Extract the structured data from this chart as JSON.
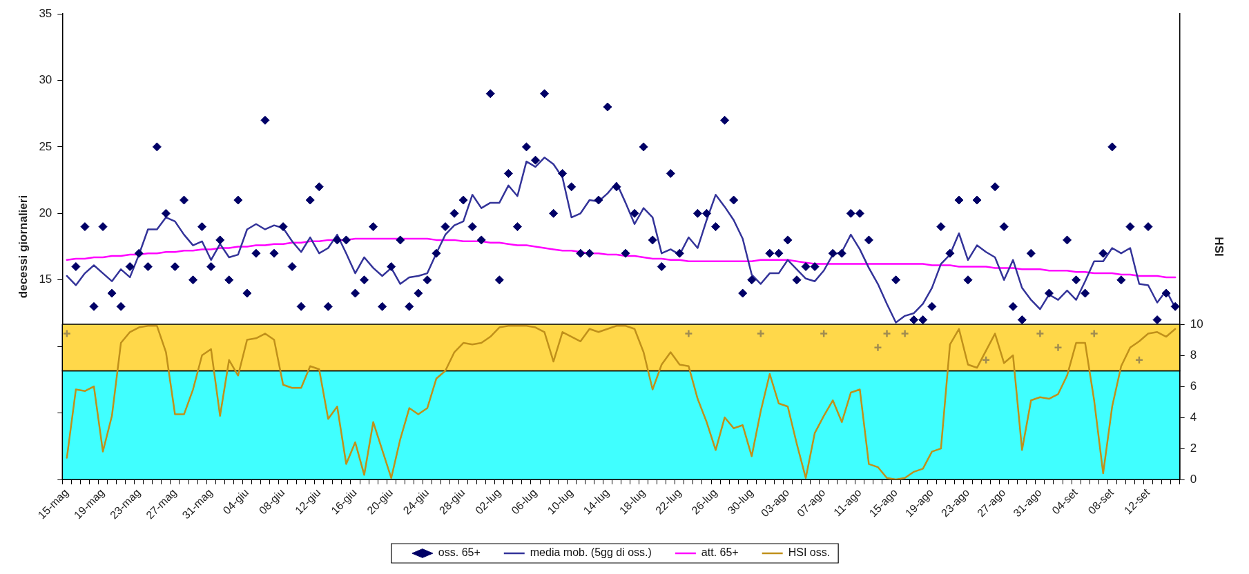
{
  "chart_data": {
    "type": "line",
    "ylabel": "decessi giornalieri",
    "y2label": "HSI",
    "legend": "bottom",
    "categories": [
      "15-mag",
      null,
      null,
      null,
      "19-mag",
      null,
      null,
      null,
      "23-mag",
      null,
      null,
      null,
      "27-mag",
      null,
      null,
      null,
      "31-mag",
      null,
      null,
      null,
      "04-giu",
      null,
      null,
      null,
      "08-giu",
      null,
      null,
      null,
      "12-giu",
      null,
      null,
      null,
      "16-giu",
      null,
      null,
      null,
      "20-giu",
      null,
      null,
      null,
      "24-giu",
      null,
      null,
      null,
      "28-giu",
      null,
      null,
      null,
      "02-lug",
      null,
      null,
      null,
      "06-lug",
      null,
      null,
      null,
      "10-lug",
      null,
      null,
      null,
      "14-lug",
      null,
      null,
      null,
      "18-lug",
      null,
      null,
      null,
      "22-lug",
      null,
      null,
      null,
      "26-lug",
      null,
      null,
      null,
      "30-lug",
      null,
      null,
      null,
      "03-ago",
      null,
      null,
      null,
      "07-ago",
      null,
      null,
      null,
      "11-ago",
      null,
      null,
      null,
      "15-ago",
      null,
      null,
      null,
      "19-ago",
      null,
      null,
      null,
      "23-ago",
      null,
      null,
      null,
      "27-ago",
      null,
      null,
      null,
      "31-ago",
      null,
      null,
      null,
      "04-set",
      null,
      null,
      null,
      "08-set",
      null,
      null,
      null,
      "12-set",
      null,
      null,
      null
    ],
    "ylim": [
      0,
      35
    ],
    "yticks": [
      {
        "value": 0,
        "label": null
      },
      {
        "value": 5,
        "label": null
      },
      {
        "value": 10,
        "label": null
      },
      15,
      20,
      25,
      30,
      35
    ],
    "y2lim": [
      0,
      30
    ],
    "y2ticks": [
      0,
      2,
      4,
      6,
      8,
      10
    ],
    "bands": [
      {
        "axis": "y2",
        "from": 0,
        "to": 7,
        "color": "#40ffff"
      },
      {
        "axis": "y2",
        "from": 7,
        "to": 10,
        "color": "#ffd84a"
      }
    ],
    "series": [
      {
        "name": "oss. 65+",
        "type": "scatter",
        "marker": "diamond",
        "color": "#000066",
        "values": [
          null,
          16,
          19,
          13,
          19,
          14,
          13,
          16,
          17,
          16,
          25,
          20,
          16,
          21,
          15,
          19,
          16,
          18,
          15,
          21,
          14,
          17,
          27,
          17,
          19,
          16,
          13,
          21,
          22,
          13,
          18,
          18,
          14,
          15,
          19,
          13,
          16,
          18,
          13,
          14,
          15,
          17,
          19,
          20,
          21,
          19,
          18,
          29,
          15,
          23,
          19,
          25,
          24,
          29,
          20,
          23,
          22,
          17,
          17,
          21,
          28,
          22,
          17,
          20,
          25,
          18,
          16,
          23,
          17,
          null,
          20,
          20,
          19,
          27,
          21,
          14,
          15,
          null,
          17,
          17,
          18,
          15,
          16,
          16,
          null,
          17,
          17,
          20,
          20,
          18,
          null,
          null,
          15,
          null,
          12,
          12,
          13,
          19,
          17,
          21,
          15,
          21,
          null,
          22,
          19,
          13,
          12,
          17,
          null,
          14,
          null,
          18,
          15,
          14,
          null,
          17,
          25,
          15,
          19,
          null,
          19,
          12,
          14,
          13
        ]
      },
      {
        "name": "media mob. (5gg di oss.)",
        "type": "line",
        "marker": "none",
        "color": "#333399",
        "values": [
          15.3,
          14.6,
          15.5,
          16.1,
          15.5,
          14.9,
          15.8,
          15.2,
          16.9,
          18.8,
          18.8,
          19.7,
          19.4,
          18.4,
          17.6,
          17.9,
          16.5,
          17.7,
          16.7,
          16.9,
          18.8,
          19.2,
          18.8,
          19.1,
          18.9,
          17.9,
          17.1,
          18.2,
          17.0,
          17.4,
          18.4,
          17.0,
          15.5,
          16.7,
          15.9,
          15.3,
          15.9,
          14.7,
          15.2,
          15.3,
          15.5,
          17.0,
          18.4,
          19.1,
          19.4,
          21.4,
          20.4,
          20.8,
          20.8,
          22.1,
          21.3,
          23.9,
          23.5,
          24.2,
          23.7,
          22.7,
          19.7,
          20.0,
          21.0,
          20.9,
          21.5,
          22.3,
          20.8,
          19.2,
          20.4,
          19.7,
          17.0,
          17.3,
          16.9,
          18.2,
          17.4,
          19.5,
          21.4,
          20.5,
          19.5,
          18.1,
          15.4,
          14.7,
          15.5,
          15.5,
          16.5,
          15.8,
          15.1,
          14.9,
          15.7,
          16.9,
          17.1,
          18.4,
          17.3,
          15.9,
          14.7,
          13.2,
          11.8,
          12.3,
          12.5,
          13.2,
          14.4,
          16.2,
          16.9,
          18.5,
          16.5,
          17.6,
          17.1,
          16.7,
          15.0,
          16.5,
          14.4,
          13.5,
          12.8,
          13.9,
          13.5,
          14.2,
          13.5,
          14.9,
          16.4,
          16.4,
          17.4,
          17.0,
          17.4,
          14.7,
          14.6,
          13.3,
          14.2,
          12.9
        ]
      },
      {
        "name": "att. 65+",
        "type": "line",
        "marker": "none",
        "color": "#ff00ff",
        "values": [
          16.5,
          16.6,
          16.6,
          16.7,
          16.7,
          16.8,
          16.8,
          16.9,
          16.9,
          17.0,
          17.0,
          17.1,
          17.1,
          17.2,
          17.2,
          17.3,
          17.3,
          17.4,
          17.4,
          17.5,
          17.5,
          17.6,
          17.6,
          17.7,
          17.7,
          17.8,
          17.8,
          17.9,
          17.9,
          18.0,
          18.0,
          18.0,
          18.1,
          18.1,
          18.1,
          18.1,
          18.1,
          18.1,
          18.1,
          18.1,
          18.1,
          18.0,
          18.0,
          18.0,
          17.9,
          17.9,
          17.9,
          17.8,
          17.8,
          17.7,
          17.6,
          17.6,
          17.5,
          17.4,
          17.3,
          17.2,
          17.2,
          17.1,
          17.0,
          17.0,
          16.9,
          16.9,
          16.8,
          16.8,
          16.7,
          16.6,
          16.6,
          16.5,
          16.5,
          16.4,
          16.4,
          16.4,
          16.4,
          16.4,
          16.4,
          16.4,
          16.4,
          16.5,
          16.5,
          16.5,
          16.5,
          16.4,
          16.3,
          16.2,
          16.2,
          16.2,
          16.2,
          16.2,
          16.2,
          16.2,
          16.2,
          16.2,
          16.2,
          16.2,
          16.2,
          16.2,
          16.1,
          16.1,
          16.1,
          16.0,
          16.0,
          16.0,
          16.0,
          15.9,
          15.9,
          15.9,
          15.8,
          15.8,
          15.8,
          15.7,
          15.7,
          15.7,
          15.6,
          15.6,
          15.5,
          15.5,
          15.5,
          15.4,
          15.4,
          15.3,
          15.3,
          15.3,
          15.2,
          15.2
        ]
      },
      {
        "name": "HSI oss.",
        "type": "line",
        "marker": "none",
        "axis": "y2",
        "color": "#c0901a",
        "values": [
          1.4,
          5.8,
          5.7,
          6.0,
          1.8,
          4.1,
          8.8,
          9.5,
          9.8,
          9.9,
          9.9,
          8.2,
          4.2,
          4.2,
          5.8,
          8.0,
          8.4,
          4.1,
          7.7,
          6.7,
          9.0,
          9.1,
          9.4,
          9.0,
          6.1,
          5.9,
          5.9,
          7.3,
          7.1,
          3.9,
          4.7,
          1.0,
          2.4,
          0.3,
          3.7,
          1.9,
          0.1,
          2.6,
          4.6,
          4.2,
          4.6,
          6.5,
          7.0,
          8.2,
          8.8,
          8.7,
          8.8,
          9.2,
          9.8,
          9.9,
          9.9,
          9.9,
          9.8,
          9.5,
          7.6,
          9.5,
          9.2,
          8.9,
          9.7,
          9.5,
          9.7,
          9.9,
          9.9,
          9.7,
          8.2,
          5.8,
          7.4,
          8.2,
          7.4,
          7.3,
          5.2,
          3.7,
          1.9,
          4.0,
          3.3,
          3.5,
          1.5,
          4.4,
          6.8,
          4.9,
          4.7,
          2.3,
          0.1,
          3.0,
          4.1,
          5.1,
          3.7,
          5.6,
          5.8,
          1.0,
          0.8,
          0.1,
          0,
          0.1,
          0.5,
          0.7,
          1.8,
          2.0,
          8.7,
          9.7,
          7.4,
          7.2,
          8.3,
          9.4,
          7.5,
          8.0,
          1.9,
          5.1,
          5.3,
          5.2,
          5.5,
          6.7,
          8.8,
          8.8,
          5.1,
          0.4,
          4.7,
          7.3,
          8.5,
          8.9,
          9.4,
          9.5,
          9.2,
          9.7
        ]
      },
      {
        "type": "scatter",
        "marker": "cross",
        "axis": "y2",
        "color": "#a08c50",
        "values": [
          9.4,
          null,
          null,
          null,
          null,
          null,
          null,
          null,
          null,
          null,
          null,
          null,
          null,
          null,
          null,
          null,
          null,
          null,
          null,
          null,
          null,
          null,
          null,
          null,
          null,
          null,
          null,
          null,
          null,
          null,
          null,
          null,
          null,
          null,
          null,
          null,
          null,
          null,
          null,
          null,
          null,
          null,
          null,
          null,
          null,
          null,
          null,
          null,
          null,
          null,
          null,
          null,
          null,
          null,
          null,
          null,
          null,
          null,
          null,
          null,
          null,
          null,
          null,
          null,
          null,
          null,
          null,
          null,
          null,
          9.4,
          null,
          null,
          null,
          null,
          null,
          null,
          null,
          9.4,
          null,
          null,
          null,
          null,
          null,
          null,
          9.4,
          null,
          null,
          null,
          null,
          null,
          8.5,
          9.4,
          null,
          9.4,
          null,
          null,
          null,
          null,
          null,
          null,
          null,
          null,
          7.7,
          null,
          null,
          null,
          null,
          null,
          9.4,
          null,
          8.5,
          null,
          null,
          null,
          9.4,
          null,
          null,
          null,
          null,
          7.7,
          null,
          null,
          null,
          null
        ]
      }
    ]
  }
}
